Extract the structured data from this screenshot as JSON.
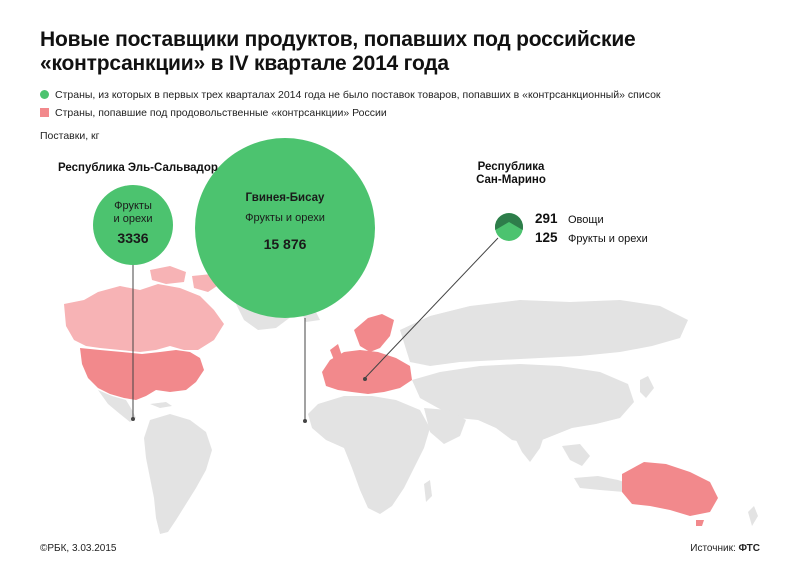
{
  "title": {
    "line1": "Новые поставщики продуктов, попавших под российские",
    "line2": "«контрсанкции» в IV квартале 2014 года"
  },
  "legend": {
    "items": [
      {
        "label": "Страны, из которых в первых трех кварталах 2014 года не было поставок товаров, попавших в «контрсанкционный» список",
        "color": "#4cc36f",
        "shape": "circle"
      },
      {
        "label": "Страны, попавшие под продовольственные «контрсанкции» России",
        "color": "#f2898c",
        "shape": "square"
      }
    ]
  },
  "unit_label": "Поставки, кг",
  "suppliers": [
    {
      "country": "Республика Эль-Сальвадор",
      "product_line1": "Фрукты",
      "product_line2": "и орехи",
      "value": "3336",
      "color": "#4cc36f"
    },
    {
      "country": "Гвинея-Бисау",
      "product": "Фрукты и орехи",
      "value": "15 876",
      "color": "#4cc36f"
    },
    {
      "country_line1": "Республика",
      "country_line2": "Сан-Марино",
      "items": [
        {
          "value": "291",
          "product": "Овощи",
          "color": "#2e7d4a"
        },
        {
          "value": "125",
          "product": "Фрукты и орехи",
          "color": "#4cc36f"
        }
      ]
    }
  ],
  "colors": {
    "land": "#e3e3e3",
    "sanctioned": "#f2898c",
    "sanctioned_light": "#f7b3b5",
    "new_supplier": "#4cc36f",
    "new_supplier_dark": "#2e7d4a",
    "leader_line": "#444444"
  },
  "footer": {
    "copyright": "©РБК, 3.03.2015",
    "source_label": "Источник:",
    "source_value": "ФТС"
  }
}
